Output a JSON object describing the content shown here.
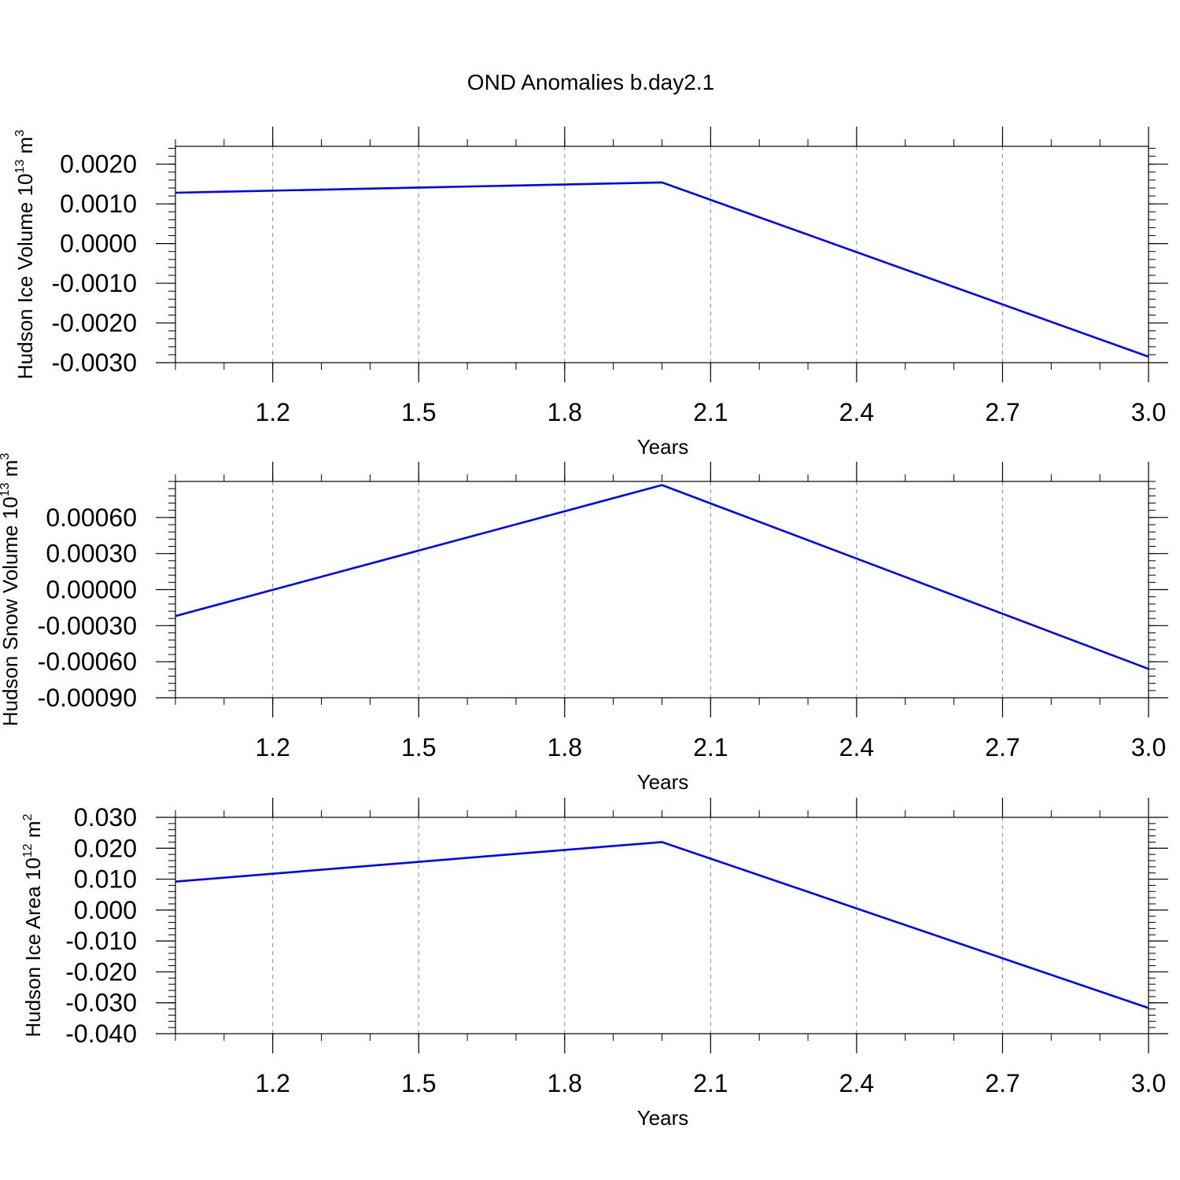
{
  "figure": {
    "title": "OND Anomalies b.day2.1"
  },
  "colors": {
    "line": "#0000ff",
    "axis": "#000000",
    "grid": "#888888",
    "background": "#ffffff"
  },
  "chart_data": [
    {
      "type": "line",
      "title": "OND Anomalies b.day2.1",
      "xlabel": "Years",
      "ylabel": {
        "base": "Hudson Ice Volume 10",
        "exp1": "13",
        "unit": " m",
        "exp2": "3"
      },
      "x": [
        1,
        2,
        3
      ],
      "series": [
        {
          "values": [
            0.00128,
            0.00154,
            -0.00285
          ]
        }
      ],
      "xlim": [
        1,
        3
      ],
      "ylim": [
        -0.003,
        0.00245
      ],
      "x_ticks": [
        1.2,
        1.5,
        1.8,
        2.1,
        2.4,
        2.7,
        3.0
      ],
      "x_tick_labels": [
        "1.2",
        "1.5",
        "1.8",
        "2.1",
        "2.4",
        "2.7",
        "3.0"
      ],
      "y_ticks": [
        0.002,
        0.001,
        0.0,
        -0.001,
        -0.002,
        -0.003
      ],
      "y_tick_labels": [
        "0.0020",
        "0.0010",
        "0.0000",
        "-0.0010",
        "-0.0020",
        "-0.0030"
      ],
      "grid": "vertical dashed at x ticks"
    },
    {
      "type": "line",
      "xlabel": "Years",
      "ylabel": {
        "base": "Hudson Snow Volume 10",
        "exp1": "13",
        "unit": " m",
        "exp2": "3"
      },
      "x": [
        1,
        2,
        3
      ],
      "series": [
        {
          "values": [
            -0.00022,
            0.00087,
            -0.00066
          ]
        }
      ],
      "xlim": [
        1,
        3
      ],
      "ylim": [
        -0.0009,
        0.0009
      ],
      "x_ticks": [
        1.2,
        1.5,
        1.8,
        2.1,
        2.4,
        2.7,
        3.0
      ],
      "x_tick_labels": [
        "1.2",
        "1.5",
        "1.8",
        "2.1",
        "2.4",
        "2.7",
        "3.0"
      ],
      "y_ticks": [
        0.0006,
        0.0003,
        0.0,
        -0.0003,
        -0.0006,
        -0.0009
      ],
      "y_tick_labels": [
        "0.00060",
        "0.00030",
        "0.00000",
        "-0.00030",
        "-0.00060",
        "-0.00090"
      ],
      "grid": "vertical dashed at x ticks"
    },
    {
      "type": "line",
      "xlabel": "Years",
      "ylabel": {
        "base": "Hudson Ice Area 10",
        "exp1": "12",
        "unit": " m",
        "exp2": "2"
      },
      "x": [
        1,
        2,
        3
      ],
      "series": [
        {
          "values": [
            0.0092,
            0.022,
            -0.0317
          ]
        }
      ],
      "xlim": [
        1,
        3
      ],
      "ylim": [
        -0.04,
        0.03
      ],
      "x_ticks": [
        1.2,
        1.5,
        1.8,
        2.1,
        2.4,
        2.7,
        3.0
      ],
      "x_tick_labels": [
        "1.2",
        "1.5",
        "1.8",
        "2.1",
        "2.4",
        "2.7",
        "3.0"
      ],
      "y_ticks": [
        0.03,
        0.02,
        0.01,
        0.0,
        -0.01,
        -0.02,
        -0.03,
        -0.04
      ],
      "y_tick_labels": [
        "0.030",
        "0.020",
        "0.010",
        "0.000",
        "-0.010",
        "-0.020",
        "-0.030",
        "-0.040"
      ],
      "grid": "vertical dashed at x ticks"
    }
  ]
}
